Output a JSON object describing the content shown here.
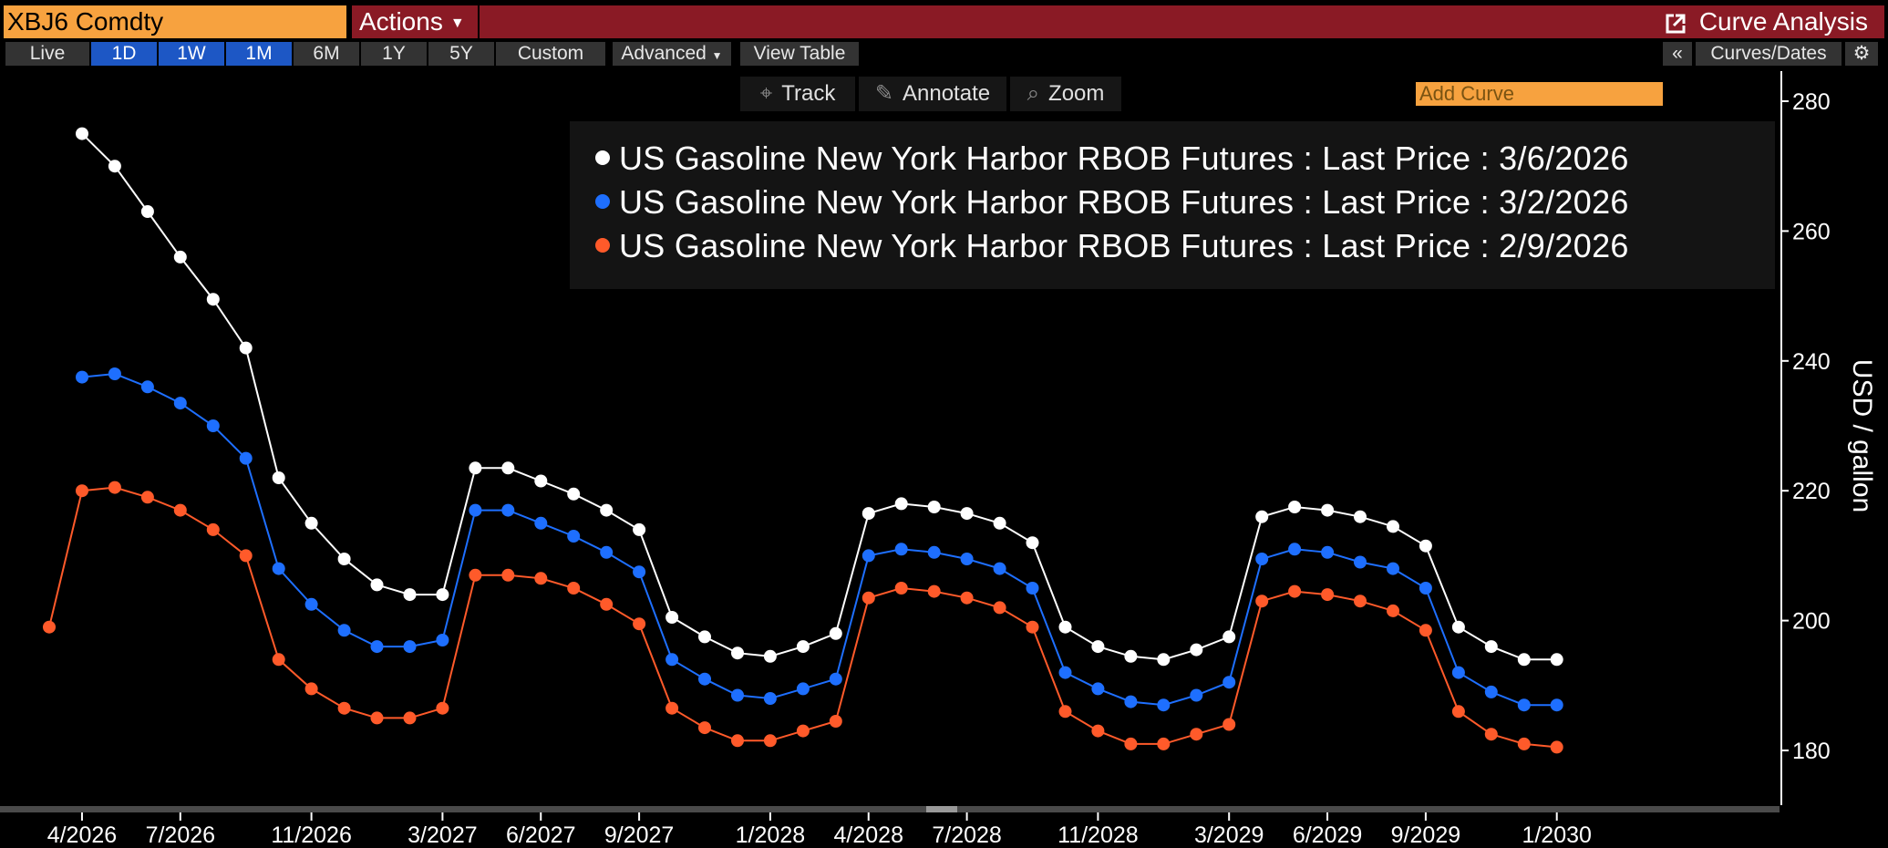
{
  "header": {
    "ticker": "XBJ6 Comdty",
    "actions_label": "Actions",
    "title": "Curve Analysis",
    "icon": "external-link-icon"
  },
  "toolbar": {
    "range_buttons": [
      "Live",
      "1D",
      "1W",
      "1M",
      "6M",
      "1Y",
      "5Y",
      "Custom"
    ],
    "active_buttons": [
      "1D",
      "1W",
      "1M"
    ],
    "advanced_label": "Advanced",
    "view_table_label": "View Table",
    "add_curve_placeholder": "Add Curve",
    "collapse_label": "«",
    "curves_dates_label": "Curves/Dates",
    "settings_icon": "gear-icon"
  },
  "chart_tools": {
    "track": "Track",
    "annotate": "Annotate",
    "zoom": "Zoom"
  },
  "colors": {
    "accent_orange": "#f7a23f",
    "header_red": "#8a1a25",
    "active_blue": "#1d57c5"
  },
  "chart_data": {
    "type": "line",
    "title": "",
    "ylabel": "USD / gallon",
    "ylim": [
      171,
      282
    ],
    "yticks": [
      180,
      200,
      220,
      240,
      260,
      280
    ],
    "legend_position": "top-right",
    "x_ticks": [
      {
        "label": "4/2026",
        "x": "2026-04"
      },
      {
        "label": "7/2026",
        "x": "2026-07"
      },
      {
        "label": "11/2026",
        "x": "2026-11"
      },
      {
        "label": "3/2027",
        "x": "2027-03"
      },
      {
        "label": "6/2027",
        "x": "2027-06"
      },
      {
        "label": "9/2027",
        "x": "2027-09"
      },
      {
        "label": "1/2028",
        "x": "2028-01"
      },
      {
        "label": "4/2028",
        "x": "2028-04"
      },
      {
        "label": "7/2028",
        "x": "2028-07"
      },
      {
        "label": "11/2028",
        "x": "2028-11"
      },
      {
        "label": "3/2029",
        "x": "2029-03"
      },
      {
        "label": "6/2029",
        "x": "2029-06"
      },
      {
        "label": "9/2029",
        "x": "2029-09"
      },
      {
        "label": "1/2030",
        "x": "2030-01"
      }
    ],
    "series": [
      {
        "name": "US Gasoline New York Harbor RBOB Futures : Last Price : 3/6/2026",
        "color": "#ffffff",
        "start": "2026-04",
        "values": [
          275,
          270,
          263,
          256,
          249.5,
          242,
          222,
          215,
          209.5,
          205.5,
          204,
          204,
          223.5,
          223.5,
          221.5,
          219.5,
          217,
          214,
          200.5,
          197.5,
          195,
          194.5,
          196,
          198,
          216.5,
          218,
          217.5,
          216.5,
          215,
          212,
          199,
          196,
          194.5,
          194,
          195.5,
          197.5,
          216,
          217.5,
          217,
          216,
          214.5,
          211.5,
          199,
          196,
          194,
          194
        ]
      },
      {
        "name": "US Gasoline New York Harbor RBOB Futures : Last Price : 3/2/2026",
        "color": "#1e6fff",
        "start": "2026-04",
        "values": [
          237.5,
          238,
          236,
          233.5,
          230,
          225,
          208,
          202.5,
          198.5,
          196,
          196,
          197,
          217,
          217,
          215,
          213,
          210.5,
          207.5,
          194,
          191,
          188.5,
          188,
          189.5,
          191,
          210,
          211,
          210.5,
          209.5,
          208,
          205,
          192,
          189.5,
          187.5,
          187,
          188.5,
          190.5,
          209.5,
          211,
          210.5,
          209,
          208,
          205,
          192,
          189,
          187,
          187
        ]
      },
      {
        "name": "US Gasoline New York Harbor RBOB Futures : Last Price : 2/9/2026",
        "color": "#ff5a2a",
        "start": "2026-03",
        "values": [
          199,
          220,
          220.5,
          219,
          217,
          214,
          210,
          194,
          189.5,
          186.5,
          185,
          185,
          186.5,
          207,
          207,
          206.5,
          205,
          202.5,
          199.5,
          186.5,
          183.5,
          181.5,
          181.5,
          183,
          184.5,
          203.5,
          205,
          204.5,
          203.5,
          202,
          199,
          186,
          183,
          181,
          181,
          182.5,
          184,
          203,
          204.5,
          204,
          203,
          201.5,
          198.5,
          186,
          182.5,
          181,
          180.5
        ]
      }
    ]
  }
}
